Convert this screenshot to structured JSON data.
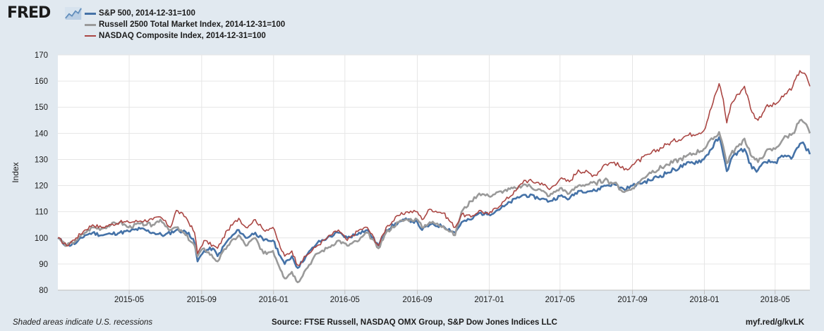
{
  "header": {
    "logo_text": "FRED",
    "logo_icon": "chart-line-icon"
  },
  "footer": {
    "note": "Shaded areas indicate U.S. recessions",
    "source": "Source: FTSE Russell, NASDAQ OMX Group, S&P Dow Jones Indices LLC",
    "link": "myf.red/g/kvLK"
  },
  "chart_data": {
    "type": "line",
    "ylabel": "Index",
    "ylim": [
      80,
      170
    ],
    "yticks": [
      80,
      90,
      100,
      110,
      120,
      130,
      140,
      150,
      160,
      170
    ],
    "xlim": [
      "2014-12-31",
      "2018-06-29"
    ],
    "xticks": [
      "2015-05",
      "2015-09",
      "2016-01",
      "2016-05",
      "2016-09",
      "2017-01",
      "2017-05",
      "2017-09",
      "2018-01",
      "2018-05"
    ],
    "grid": true,
    "legend_position": "top-left",
    "series": [
      {
        "name": "S&P 500, 2014-12-31=100",
        "color": "#4572a7",
        "width": 2.6,
        "points": [
          [
            "2014-12-31",
            100
          ],
          [
            "2015-01-15",
            97
          ],
          [
            "2015-01-31",
            98
          ],
          [
            "2015-02-15",
            101
          ],
          [
            "2015-02-28",
            102
          ],
          [
            "2015-03-15",
            101
          ],
          [
            "2015-03-31",
            101.5
          ],
          [
            "2015-04-15",
            102
          ],
          [
            "2015-04-30",
            102.5
          ],
          [
            "2015-05-20",
            103.5
          ],
          [
            "2015-06-10",
            102
          ],
          [
            "2015-06-30",
            101
          ],
          [
            "2015-07-20",
            103
          ],
          [
            "2015-08-10",
            102
          ],
          [
            "2015-08-20",
            98
          ],
          [
            "2015-08-25",
            91
          ],
          [
            "2015-09-05",
            95
          ],
          [
            "2015-09-20",
            96
          ],
          [
            "2015-09-28",
            93
          ],
          [
            "2015-10-15",
            99
          ],
          [
            "2015-11-03",
            103
          ],
          [
            "2015-11-15",
            100
          ],
          [
            "2015-12-01",
            102
          ],
          [
            "2015-12-15",
            99
          ],
          [
            "2015-12-31",
            99
          ],
          [
            "2016-01-15",
            92
          ],
          [
            "2016-01-20",
            90
          ],
          [
            "2016-02-01",
            93
          ],
          [
            "2016-02-11",
            88.5
          ],
          [
            "2016-02-25",
            93
          ],
          [
            "2016-03-15",
            98
          ],
          [
            "2016-04-01",
            100
          ],
          [
            "2016-04-20",
            102
          ],
          [
            "2016-05-05",
            100
          ],
          [
            "2016-05-25",
            102
          ],
          [
            "2016-06-08",
            103
          ],
          [
            "2016-06-27",
            97
          ],
          [
            "2016-07-10",
            103
          ],
          [
            "2016-07-31",
            106
          ],
          [
            "2016-08-15",
            107
          ],
          [
            "2016-09-01",
            106
          ],
          [
            "2016-09-09",
            103
          ],
          [
            "2016-09-22",
            105
          ],
          [
            "2016-10-15",
            104.5
          ],
          [
            "2016-11-04",
            102
          ],
          [
            "2016-11-15",
            106
          ],
          [
            "2016-12-01",
            107
          ],
          [
            "2016-12-15",
            109.5
          ],
          [
            "2016-12-31",
            109
          ],
          [
            "2017-01-26",
            112
          ],
          [
            "2017-02-15",
            115
          ],
          [
            "2017-03-01",
            116.5
          ],
          [
            "2017-03-31",
            115
          ],
          [
            "2017-04-13",
            114
          ],
          [
            "2017-05-01",
            116
          ],
          [
            "2017-05-17",
            115
          ],
          [
            "2017-06-01",
            118
          ],
          [
            "2017-06-30",
            118
          ],
          [
            "2017-07-15",
            120
          ],
          [
            "2017-08-01",
            120.5
          ],
          [
            "2017-08-18",
            118.5
          ],
          [
            "2017-09-01",
            120
          ],
          [
            "2017-09-30",
            122
          ],
          [
            "2017-10-31",
            125
          ],
          [
            "2017-11-30",
            128
          ],
          [
            "2017-12-31",
            130
          ],
          [
            "2018-01-26",
            138.5
          ],
          [
            "2018-02-02",
            132
          ],
          [
            "2018-02-08",
            125.5
          ],
          [
            "2018-02-15",
            130
          ],
          [
            "2018-02-27",
            133
          ],
          [
            "2018-03-10",
            134
          ],
          [
            "2018-03-23",
            126.5
          ],
          [
            "2018-04-02",
            126
          ],
          [
            "2018-04-15",
            129
          ],
          [
            "2018-05-01",
            129
          ],
          [
            "2018-05-15",
            131
          ],
          [
            "2018-05-31",
            131
          ],
          [
            "2018-06-12",
            136
          ],
          [
            "2018-06-20",
            135.5
          ],
          [
            "2018-06-29",
            132
          ]
        ]
      },
      {
        "name": "Russell 2500 Total Market Index, 2014-12-31=100",
        "color": "#9a9a9a",
        "width": 2.6,
        "points": [
          [
            "2014-12-31",
            100
          ],
          [
            "2015-01-15",
            97
          ],
          [
            "2015-01-31",
            99
          ],
          [
            "2015-02-15",
            102
          ],
          [
            "2015-02-28",
            104
          ],
          [
            "2015-03-15",
            103.5
          ],
          [
            "2015-03-31",
            105
          ],
          [
            "2015-04-15",
            106
          ],
          [
            "2015-04-30",
            104
          ],
          [
            "2015-05-20",
            105.5
          ],
          [
            "2015-06-10",
            105
          ],
          [
            "2015-06-23",
            107
          ],
          [
            "2015-07-10",
            103
          ],
          [
            "2015-07-20",
            104
          ],
          [
            "2015-08-05",
            101
          ],
          [
            "2015-08-20",
            97
          ],
          [
            "2015-08-25",
            93
          ],
          [
            "2015-09-05",
            96
          ],
          [
            "2015-09-28",
            91
          ],
          [
            "2015-10-15",
            97
          ],
          [
            "2015-11-03",
            101
          ],
          [
            "2015-11-15",
            97
          ],
          [
            "2015-12-01",
            100
          ],
          [
            "2015-12-15",
            94
          ],
          [
            "2015-12-31",
            95
          ],
          [
            "2016-01-15",
            87
          ],
          [
            "2016-01-20",
            84.5
          ],
          [
            "2016-02-01",
            87
          ],
          [
            "2016-02-11",
            83
          ],
          [
            "2016-02-25",
            88
          ],
          [
            "2016-03-15",
            94
          ],
          [
            "2016-04-01",
            96
          ],
          [
            "2016-04-20",
            99
          ],
          [
            "2016-05-05",
            97
          ],
          [
            "2016-05-25",
            99
          ],
          [
            "2016-06-08",
            102
          ],
          [
            "2016-06-27",
            96
          ],
          [
            "2016-07-10",
            102
          ],
          [
            "2016-07-31",
            106
          ],
          [
            "2016-08-15",
            107
          ],
          [
            "2016-09-01",
            107
          ],
          [
            "2016-09-09",
            104
          ],
          [
            "2016-09-22",
            106
          ],
          [
            "2016-10-15",
            104.5
          ],
          [
            "2016-11-04",
            101
          ],
          [
            "2016-11-15",
            110
          ],
          [
            "2016-12-01",
            114
          ],
          [
            "2016-12-15",
            117
          ],
          [
            "2016-12-31",
            116
          ],
          [
            "2017-01-26",
            118
          ],
          [
            "2017-02-15",
            119
          ],
          [
            "2017-03-01",
            120.5
          ],
          [
            "2017-03-31",
            118
          ],
          [
            "2017-04-13",
            116
          ],
          [
            "2017-05-01",
            119
          ],
          [
            "2017-05-17",
            117
          ],
          [
            "2017-06-01",
            120
          ],
          [
            "2017-06-30",
            121
          ],
          [
            "2017-07-15",
            122
          ],
          [
            "2017-08-01",
            121
          ],
          [
            "2017-08-18",
            117.5
          ],
          [
            "2017-09-01",
            119
          ],
          [
            "2017-09-30",
            125
          ],
          [
            "2017-10-31",
            128
          ],
          [
            "2017-11-30",
            131
          ],
          [
            "2017-12-31",
            134
          ],
          [
            "2018-01-26",
            140.5
          ],
          [
            "2018-02-02",
            135
          ],
          [
            "2018-02-08",
            128.5
          ],
          [
            "2018-02-15",
            132
          ],
          [
            "2018-02-27",
            135
          ],
          [
            "2018-03-10",
            138
          ],
          [
            "2018-03-23",
            131
          ],
          [
            "2018-04-02",
            129
          ],
          [
            "2018-04-15",
            133
          ],
          [
            "2018-05-01",
            134
          ],
          [
            "2018-05-15",
            138
          ],
          [
            "2018-05-31",
            140
          ],
          [
            "2018-06-12",
            145
          ],
          [
            "2018-06-20",
            144
          ],
          [
            "2018-06-29",
            140
          ]
        ]
      },
      {
        "name": "NASDAQ Composite Index, 2014-12-31=100",
        "color": "#aa4643",
        "width": 1.6,
        "points": [
          [
            "2014-12-31",
            100
          ],
          [
            "2015-01-15",
            97
          ],
          [
            "2015-01-31",
            100
          ],
          [
            "2015-02-15",
            103
          ],
          [
            "2015-02-28",
            105
          ],
          [
            "2015-03-15",
            104
          ],
          [
            "2015-03-31",
            105
          ],
          [
            "2015-04-15",
            106
          ],
          [
            "2015-04-30",
            106
          ],
          [
            "2015-05-20",
            106.5
          ],
          [
            "2015-06-10",
            107
          ],
          [
            "2015-06-23",
            108
          ],
          [
            "2015-07-10",
            104
          ],
          [
            "2015-07-20",
            110.5
          ],
          [
            "2015-08-05",
            108
          ],
          [
            "2015-08-20",
            102
          ],
          [
            "2015-08-25",
            94
          ],
          [
            "2015-09-05",
            99
          ],
          [
            "2015-09-28",
            96
          ],
          [
            "2015-10-15",
            103
          ],
          [
            "2015-11-03",
            107.5
          ],
          [
            "2015-11-15",
            104
          ],
          [
            "2015-12-01",
            107
          ],
          [
            "2015-12-15",
            103
          ],
          [
            "2015-12-31",
            104
          ],
          [
            "2016-01-15",
            95
          ],
          [
            "2016-01-20",
            93
          ],
          [
            "2016-02-01",
            95
          ],
          [
            "2016-02-11",
            89.5
          ],
          [
            "2016-02-25",
            93
          ],
          [
            "2016-03-15",
            97
          ],
          [
            "2016-04-01",
            100
          ],
          [
            "2016-04-20",
            103
          ],
          [
            "2016-05-05",
            99
          ],
          [
            "2016-05-25",
            103
          ],
          [
            "2016-06-08",
            104
          ],
          [
            "2016-06-27",
            97
          ],
          [
            "2016-07-10",
            104
          ],
          [
            "2016-07-31",
            108.5
          ],
          [
            "2016-08-15",
            110
          ],
          [
            "2016-09-01",
            110
          ],
          [
            "2016-09-09",
            107
          ],
          [
            "2016-09-22",
            111
          ],
          [
            "2016-10-15",
            109.5
          ],
          [
            "2016-11-04",
            104
          ],
          [
            "2016-11-15",
            109
          ],
          [
            "2016-12-01",
            108
          ],
          [
            "2016-12-15",
            110.5
          ],
          [
            "2016-12-31",
            109
          ],
          [
            "2017-01-26",
            114
          ],
          [
            "2017-02-15",
            118
          ],
          [
            "2017-03-01",
            122
          ],
          [
            "2017-03-31",
            121
          ],
          [
            "2017-04-13",
            118.5
          ],
          [
            "2017-05-01",
            122.5
          ],
          [
            "2017-05-17",
            121.5
          ],
          [
            "2017-06-01",
            126
          ],
          [
            "2017-06-30",
            124
          ],
          [
            "2017-07-15",
            128
          ],
          [
            "2017-08-01",
            129
          ],
          [
            "2017-08-18",
            126
          ],
          [
            "2017-09-01",
            128
          ],
          [
            "2017-09-30",
            132
          ],
          [
            "2017-10-31",
            136
          ],
          [
            "2017-11-30",
            139
          ],
          [
            "2017-12-31",
            141
          ],
          [
            "2018-01-26",
            159
          ],
          [
            "2018-02-02",
            153
          ],
          [
            "2018-02-08",
            144
          ],
          [
            "2018-02-15",
            151
          ],
          [
            "2018-02-27",
            155
          ],
          [
            "2018-03-10",
            158
          ],
          [
            "2018-03-23",
            148
          ],
          [
            "2018-04-02",
            145
          ],
          [
            "2018-04-15",
            150
          ],
          [
            "2018-05-01",
            151
          ],
          [
            "2018-05-15",
            154
          ],
          [
            "2018-05-31",
            158
          ],
          [
            "2018-06-12",
            164
          ],
          [
            "2018-06-20",
            163
          ],
          [
            "2018-06-29",
            158
          ]
        ]
      }
    ]
  }
}
